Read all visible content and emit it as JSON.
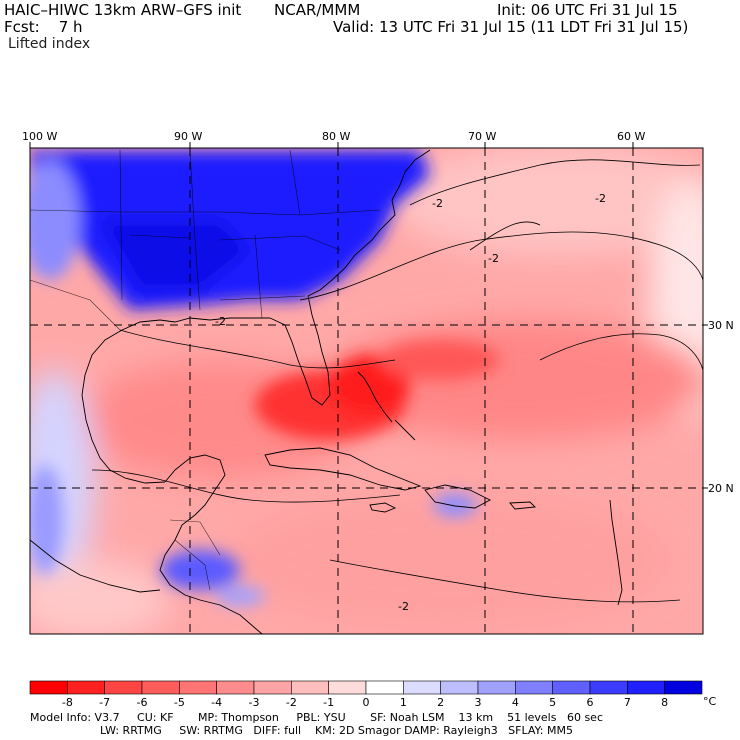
{
  "header": {
    "model_title": "HAIC–HIWC 13km ARW–GFS init",
    "org": "NCAR/MMM",
    "init": "Init: 06 UTC Fri 31 Jul 15",
    "fcst": "Fcst:    7 h",
    "valid": "Valid: 13 UTC Fri 31 Jul 15 (11 LDT Fri 31 Jul 15)",
    "field": "Lifted index"
  },
  "map": {
    "lon_labels": [
      "100 W",
      "90 W",
      "80 W",
      "70 W",
      "60 W"
    ],
    "lat_labels": [
      "30 N",
      "20 N"
    ],
    "contour_labels": [
      "-2",
      "-2",
      "-2",
      "-2",
      "-2"
    ]
  },
  "colorbar": {
    "tick_labels": [
      "-8",
      "-7",
      "-6",
      "-5",
      "-4",
      "-3",
      "-2",
      "-1",
      "0",
      "1",
      "2",
      "3",
      "4",
      "5",
      "6",
      "7",
      "8"
    ],
    "unit": "°C",
    "colors": [
      "#ff0000",
      "#ff2020",
      "#ff4444",
      "#ff5c5c",
      "#ff7474",
      "#ff8c8c",
      "#ffa4a4",
      "#ffbebe",
      "#ffdcdc",
      "#ffffff",
      "#dcdcff",
      "#bebeff",
      "#a0a0ff",
      "#8080ff",
      "#6060ff",
      "#3c3cff",
      "#2020ff",
      "#0000e0"
    ]
  },
  "model_info": {
    "line1": "Model Info: V3.7     CU: KF       MP: Thompson     PBL: YSU       SF: Noah LSM    13 km    51 levels   60 sec",
    "line2": "LW: RRTMG     SW: RRTMG   DIFF: full    KM: 2D Smagor DAMP: Rayleigh3   SFLAY: MM5"
  },
  "palette": {
    "strong_warm": "#ff1a1a",
    "warm": "#ff7a7a",
    "light_warm": "#ffbcbc",
    "cool": "#1a1aff",
    "light_cool": "#b8b8ff"
  }
}
